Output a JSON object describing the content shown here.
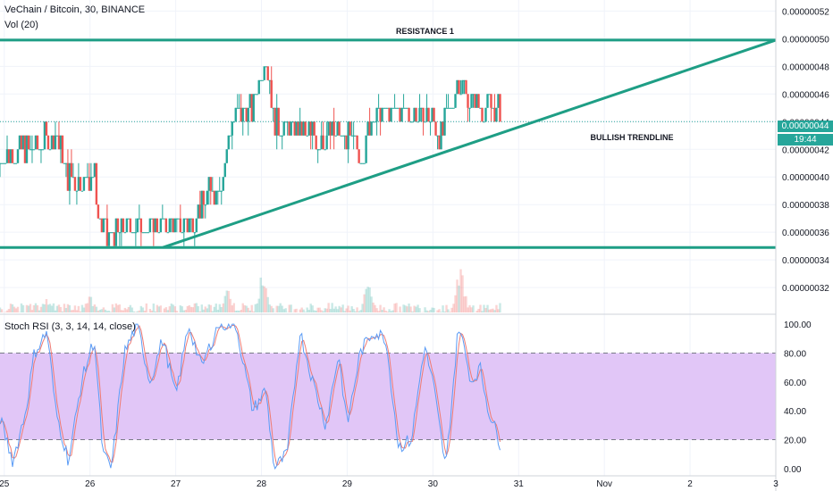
{
  "header": {
    "symbol_title": "VeChain / Bitcoin, 30, BINANCE",
    "volume_label": "Vol (20)",
    "rsi_label": "Stoch RSI (3, 3, 14, 14, close)"
  },
  "current_price": {
    "value_label": "0.00000044",
    "countdown": "19:44"
  },
  "colors": {
    "up": "#26a69a",
    "down": "#ef5350",
    "trendline": "#1e9e85",
    "rsi_band": "#e1c6f7",
    "rsi_k": "#5b9cf6",
    "rsi_d": "#ef7b73"
  },
  "chart_data": [
    {
      "type": "candlestick",
      "title": "",
      "y_ticks": [
        "0.00000052",
        "0.00000050",
        "0.00000048",
        "0.00000046",
        "0.00000044",
        "0.00000042",
        "0.00000040",
        "0.00000038",
        "0.00000036",
        "0.00000034",
        "0.00000032"
      ],
      "ylim": [
        3.02e-07,
        5.28e-07
      ],
      "x_ticks": [
        "25",
        "26",
        "27",
        "28",
        "29",
        "30",
        "31",
        "Nov",
        "2",
        "3"
      ],
      "x_range_days": [
        24.95,
        34.0
      ],
      "grid": true,
      "close_path": [
        [
          24.95,
          4.1e-07
        ],
        [
          25.05,
          4.2e-07
        ],
        [
          25.3,
          4.2e-07
        ],
        [
          25.6,
          4.3e-07
        ],
        [
          25.75,
          4e-07
        ],
        [
          26.05,
          4e-07
        ],
        [
          26.1,
          3.7e-07
        ],
        [
          26.2,
          3.55e-07
        ],
        [
          26.5,
          3.65e-07
        ],
        [
          26.85,
          3.65e-07
        ],
        [
          27.1,
          3.65e-07
        ],
        [
          27.3,
          3.8e-07
        ],
        [
          27.55,
          4e-07
        ],
        [
          27.65,
          4.4e-07
        ],
        [
          27.9,
          4.5e-07
        ],
        [
          28.05,
          4.9e-07
        ],
        [
          28.15,
          4.4e-07
        ],
        [
          28.3,
          4.35e-07
        ],
        [
          28.5,
          4.3e-07
        ],
        [
          28.65,
          4.3e-07
        ],
        [
          28.9,
          4.3e-07
        ],
        [
          29.2,
          4.2e-07
        ],
        [
          29.3,
          4.45e-07
        ],
        [
          29.7,
          4.45e-07
        ],
        [
          29.95,
          4.45e-07
        ],
        [
          30.1,
          4.3e-07
        ],
        [
          30.3,
          4.7e-07
        ],
        [
          30.45,
          4.55e-07
        ],
        [
          30.65,
          4.5e-07
        ],
        [
          30.8,
          4.45e-07
        ]
      ],
      "annotations": [
        {
          "text": "RESISTANCE 1",
          "kind": "horizontal-line",
          "price": 4.99e-07,
          "from_day": 24.95,
          "to_day": 34.0
        },
        {
          "text": "",
          "kind": "horizontal-line",
          "price": 3.49e-07,
          "from_day": 24.95,
          "to_day": 34.0
        },
        {
          "text": "BULLISH TRENDLINE",
          "kind": "trendline",
          "start": [
            26.85,
            3.49e-07
          ],
          "end": [
            34.0,
            4.99e-07
          ]
        }
      ],
      "current_price": 4.4e-07
    },
    {
      "type": "bar",
      "title": "",
      "series_name": "Vol (20)",
      "spikes": [
        [
          28.02,
          0.95
        ],
        [
          29.25,
          0.7
        ],
        [
          30.32,
          1.0
        ],
        [
          27.6,
          0.6
        ],
        [
          25.5,
          0.3
        ],
        [
          26.0,
          0.35
        ]
      ]
    },
    {
      "type": "line",
      "title": "",
      "y_ticks": [
        "100.00",
        "80.00",
        "60.00",
        "40.00",
        "20.00",
        "0.00"
      ],
      "ylim": [
        -5,
        105
      ],
      "band": [
        20,
        80
      ],
      "series": [
        {
          "key": "k",
          "anchors": [
            [
              24.95,
              35
            ],
            [
              25.1,
              5
            ],
            [
              25.25,
              40
            ],
            [
              25.35,
              80
            ],
            [
              25.5,
              95
            ],
            [
              25.6,
              40
            ],
            [
              25.75,
              5
            ],
            [
              25.9,
              60
            ],
            [
              26.05,
              90
            ],
            [
              26.15,
              10
            ],
            [
              26.25,
              0
            ],
            [
              26.4,
              80
            ],
            [
              26.55,
              100
            ],
            [
              26.7,
              60
            ],
            [
              26.85,
              90
            ],
            [
              27.0,
              50
            ],
            [
              27.15,
              100
            ],
            [
              27.3,
              70
            ],
            [
              27.5,
              100
            ],
            [
              27.7,
              100
            ],
            [
              27.9,
              40
            ],
            [
              28.05,
              55
            ],
            [
              28.15,
              0
            ],
            [
              28.3,
              10
            ],
            [
              28.45,
              95
            ],
            [
              28.6,
              60
            ],
            [
              28.75,
              30
            ],
            [
              28.9,
              80
            ],
            [
              29.0,
              30
            ],
            [
              29.15,
              80
            ],
            [
              29.3,
              95
            ],
            [
              29.45,
              90
            ],
            [
              29.6,
              15
            ],
            [
              29.75,
              20
            ],
            [
              29.9,
              85
            ],
            [
              30.0,
              60
            ],
            [
              30.15,
              0
            ],
            [
              30.3,
              100
            ],
            [
              30.45,
              60
            ],
            [
              30.55,
              70
            ],
            [
              30.65,
              40
            ],
            [
              30.8,
              15
            ]
          ]
        },
        {
          "key": "d"
        }
      ]
    }
  ]
}
